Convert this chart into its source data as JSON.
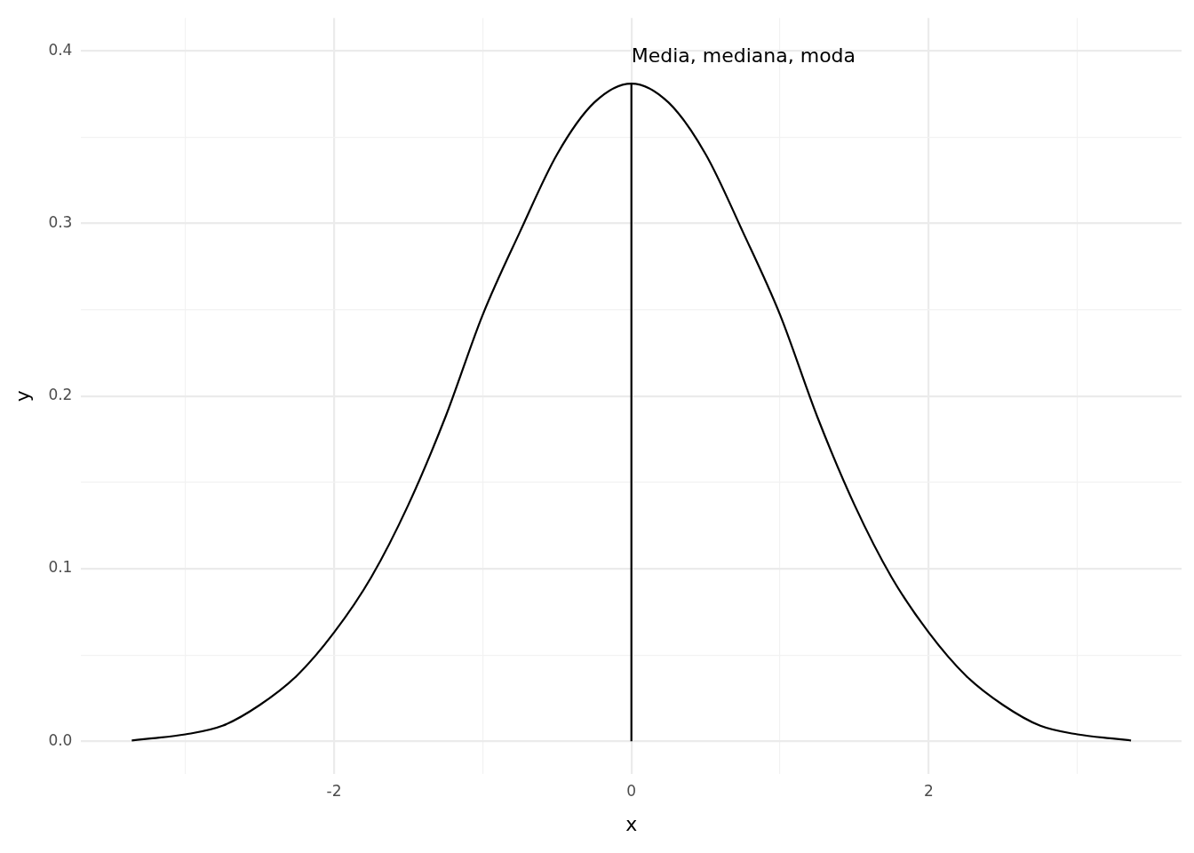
{
  "chart_data": {
    "type": "line",
    "xlabel": "x",
    "ylabel": "y",
    "series": [
      {
        "color": "#000000",
        "x": [
          -3.36,
          -3.25,
          -3,
          -2.75,
          -2.5,
          -2.25,
          -2,
          -1.75,
          -1.5,
          -1.25,
          -1,
          -0.75,
          -0.5,
          -0.25,
          0,
          0.25,
          0.5,
          0.75,
          1,
          1.25,
          1.5,
          1.75,
          2,
          2.25,
          2.5,
          2.75,
          3,
          3.25,
          3.36
        ],
        "values": [
          0.0005,
          0.0015,
          0.004,
          0.009,
          0.021,
          0.038,
          0.063,
          0.095,
          0.137,
          0.188,
          0.247,
          0.295,
          0.34,
          0.37,
          0.381,
          0.37,
          0.34,
          0.295,
          0.247,
          0.188,
          0.137,
          0.095,
          0.063,
          0.038,
          0.021,
          0.009,
          0.004,
          0.0015,
          0.0005
        ]
      },
      {
        "color": "#000000",
        "x": [
          0,
          0
        ],
        "values": [
          0,
          0.381
        ]
      }
    ],
    "annotations": [
      "Media, mediana, moda"
    ],
    "xlim": [
      -3.7,
      3.7
    ],
    "xticks": [
      {
        "value": -3,
        "label": null
      },
      -2,
      {
        "value": -1,
        "label": null
      },
      0,
      {
        "value": 1,
        "label": null
      },
      2,
      {
        "value": 3,
        "label": null
      }
    ],
    "ylim": [
      -0.019,
      0.419
    ],
    "yticks": [
      {
        "value": 0,
        "label": "0.0"
      },
      {
        "value": 0.05,
        "label": null
      },
      0.1,
      {
        "value": 0.15,
        "label": null
      },
      0.2,
      {
        "value": 0.25,
        "label": null
      },
      0.3,
      {
        "value": 0.35,
        "label": null
      },
      0.4
    ],
    "grid": true,
    "marker": "none",
    "line_style": "solid",
    "legend": false
  }
}
